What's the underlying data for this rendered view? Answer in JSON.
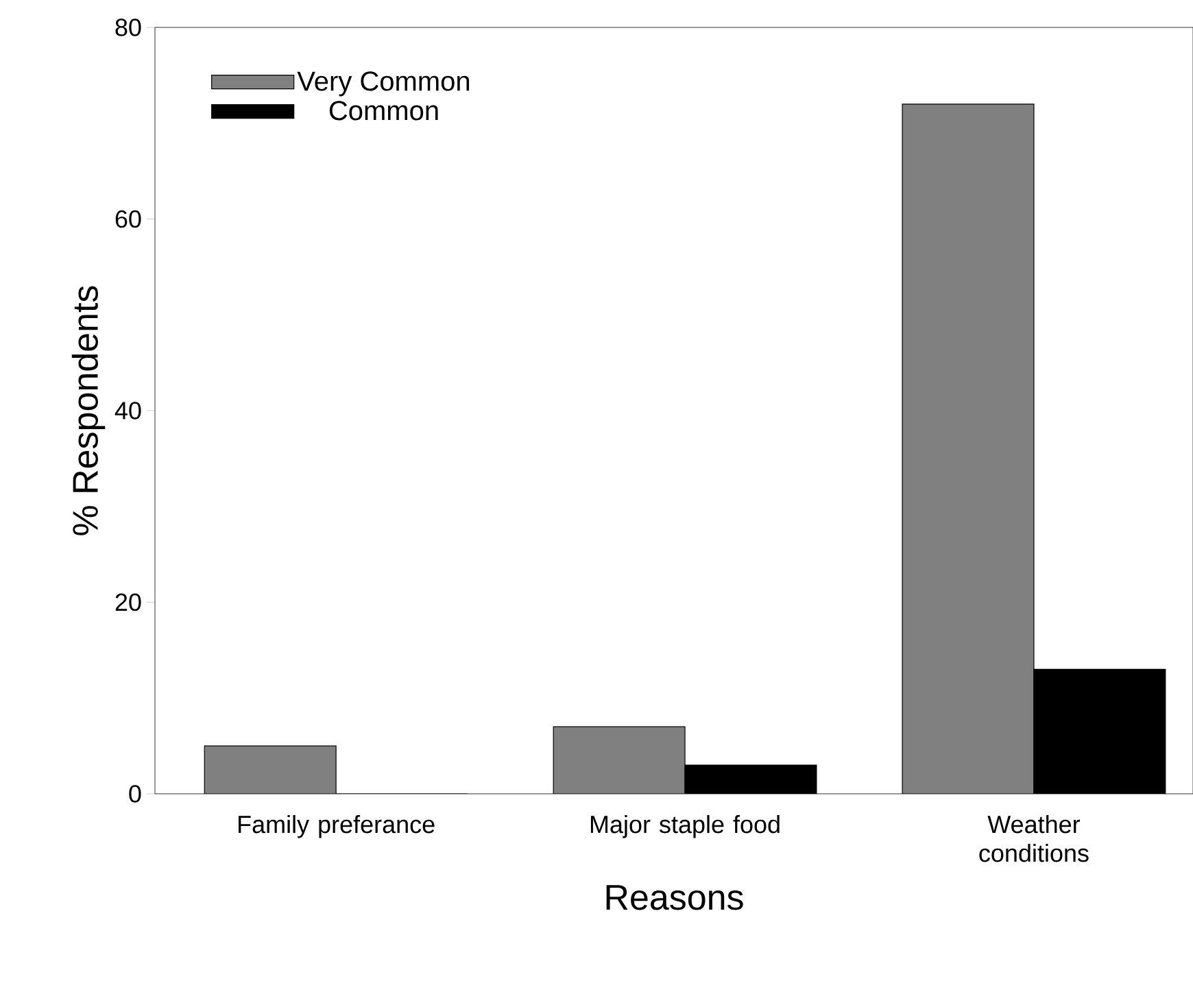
{
  "chart_data": {
    "type": "bar",
    "xlabel": "Reasons",
    "ylabel": "% Respondents",
    "categories": [
      "Family preferance",
      "Major staple food",
      "Weather conditions"
    ],
    "series": [
      {
        "name": "Very Common",
        "color": "#808080",
        "values": [
          5,
          7,
          72
        ]
      },
      {
        "name": "Common",
        "color": "#000000",
        "values": [
          0,
          3,
          13
        ]
      }
    ],
    "ylim": [
      0,
      80
    ],
    "yticks": [
      0,
      20,
      40,
      60,
      80
    ],
    "legend": "top left",
    "grid": false
  }
}
